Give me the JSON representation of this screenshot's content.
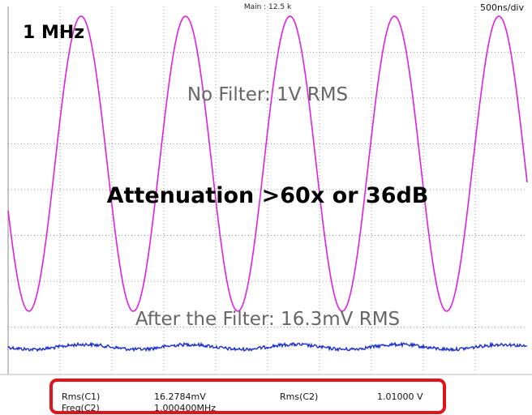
{
  "header": {
    "mode": "Main : 12.5 k",
    "timebase": "500ns/div"
  },
  "annotations": {
    "frequency": "1 MHz",
    "no_filter": "No Filter: 1V RMS",
    "attenuation": "Attenuation >60x or 36dB",
    "after_filter": "After the Filter: 16.3mV RMS"
  },
  "measurements": {
    "rows": [
      [
        "Rms(C1)",
        "16.2784mV",
        "Rms(C2)",
        "1.01000 V"
      ],
      [
        "Freq(C2)",
        "1.000400MHz"
      ]
    ]
  }
}
